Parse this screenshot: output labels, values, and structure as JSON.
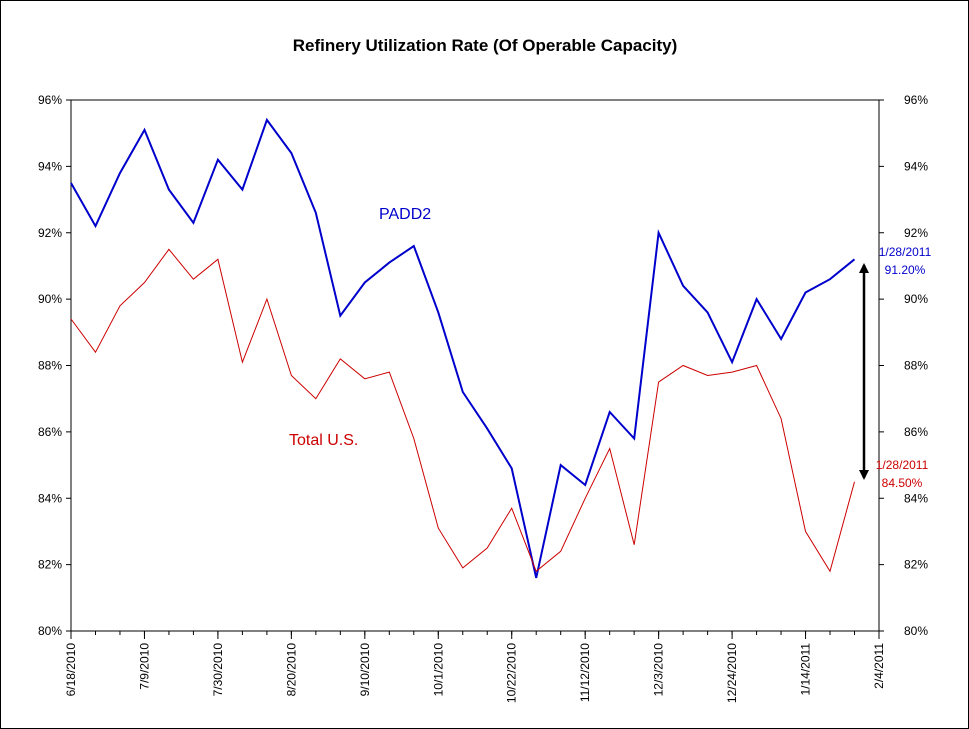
{
  "chart_data": {
    "type": "line",
    "title": "Refinery Utilization Rate (Of Operable Capacity)",
    "ylim": [
      80,
      96
    ],
    "y_ticks": [
      "80%",
      "82%",
      "84%",
      "86%",
      "88%",
      "90%",
      "92%",
      "94%",
      "96%"
    ],
    "x_tick_labels": [
      "6/18/2010",
      "7/9/2010",
      "7/30/2010",
      "8/20/2010",
      "9/10/2010",
      "10/1/2010",
      "10/22/2010",
      "11/12/2010",
      "12/3/2010",
      "12/24/2010",
      "1/14/2011",
      "2/4/2011"
    ],
    "x": [
      "6/18/2010",
      "6/25/2010",
      "7/2/2010",
      "7/9/2010",
      "7/16/2010",
      "7/23/2010",
      "7/30/2010",
      "8/6/2010",
      "8/13/2010",
      "8/20/2010",
      "8/27/2010",
      "9/3/2010",
      "9/10/2010",
      "9/17/2010",
      "9/24/2010",
      "10/1/2010",
      "10/8/2010",
      "10/15/2010",
      "10/22/2010",
      "10/29/2010",
      "11/5/2010",
      "11/12/2010",
      "11/19/2010",
      "11/26/2010",
      "12/3/2010",
      "12/10/2010",
      "12/17/2010",
      "12/24/2010",
      "12/31/2010",
      "1/7/2011",
      "1/14/2011",
      "1/21/2011",
      "1/28/2011"
    ],
    "series": [
      {
        "name": "PADD2",
        "color": "#0000cc",
        "values": [
          93.5,
          92.2,
          93.8,
          95.1,
          93.3,
          92.3,
          94.2,
          93.3,
          95.4,
          94.4,
          92.6,
          89.5,
          90.5,
          91.1,
          91.6,
          89.6,
          87.2,
          86.1,
          84.9,
          81.6,
          85.0,
          84.4,
          86.6,
          85.8,
          92.0,
          90.4,
          89.6,
          88.1,
          90.0,
          88.8,
          90.2,
          90.6,
          91.2
        ]
      },
      {
        "name": "Total U.S.",
        "color": "#cc0000",
        "values": [
          89.4,
          88.4,
          89.8,
          90.5,
          91.5,
          90.6,
          91.2,
          88.1,
          90.0,
          87.7,
          87.0,
          88.2,
          87.6,
          87.8,
          85.8,
          83.1,
          81.9,
          82.5,
          83.7,
          81.8,
          82.4,
          84.0,
          85.5,
          82.6,
          87.5,
          88.0,
          87.7,
          87.8,
          88.0,
          86.4,
          83.0,
          81.8,
          84.5
        ]
      }
    ],
    "annotations": [
      {
        "series": "PADD2",
        "date": "1/28/2011",
        "value": "91.20%",
        "color": "#0000cc"
      },
      {
        "series": "Total U.S.",
        "date": "1/28/2011",
        "value": "84.50%",
        "color": "#cc0000"
      }
    ],
    "grid": false,
    "legend": "none"
  }
}
